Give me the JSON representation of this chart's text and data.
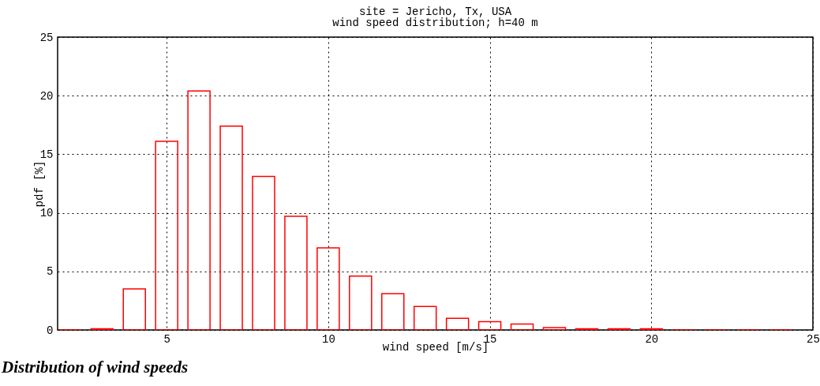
{
  "chart_data": {
    "type": "bar",
    "title": "site = Jericho, Tx, USA",
    "subtitle": "wind speed distribution; h=40 m",
    "xlabel": "wind speed [m/s]",
    "ylabel": "pdf [%]",
    "x": [
      2,
      3,
      4,
      5,
      6,
      7,
      8,
      9,
      10,
      11,
      12,
      13,
      14,
      15,
      16,
      17,
      18,
      19,
      20,
      21,
      22,
      23,
      24
    ],
    "values": [
      0,
      0.1,
      3.5,
      16.1,
      20.4,
      17.4,
      13.1,
      9.7,
      7.0,
      4.6,
      3.1,
      2.0,
      1.0,
      0.7,
      0.5,
      0.2,
      0.1,
      0.1,
      0.1,
      0,
      0,
      0,
      0
    ],
    "color": "#ff0000",
    "xlim": [
      1.625,
      25
    ],
    "xticks": [
      5,
      10,
      15,
      20,
      25
    ],
    "ylim": [
      0,
      25
    ],
    "yticks": [
      0,
      5,
      10,
      15,
      20,
      25
    ],
    "grid": true,
    "annotations": [
      "Distribution of wind speeds"
    ]
  }
}
